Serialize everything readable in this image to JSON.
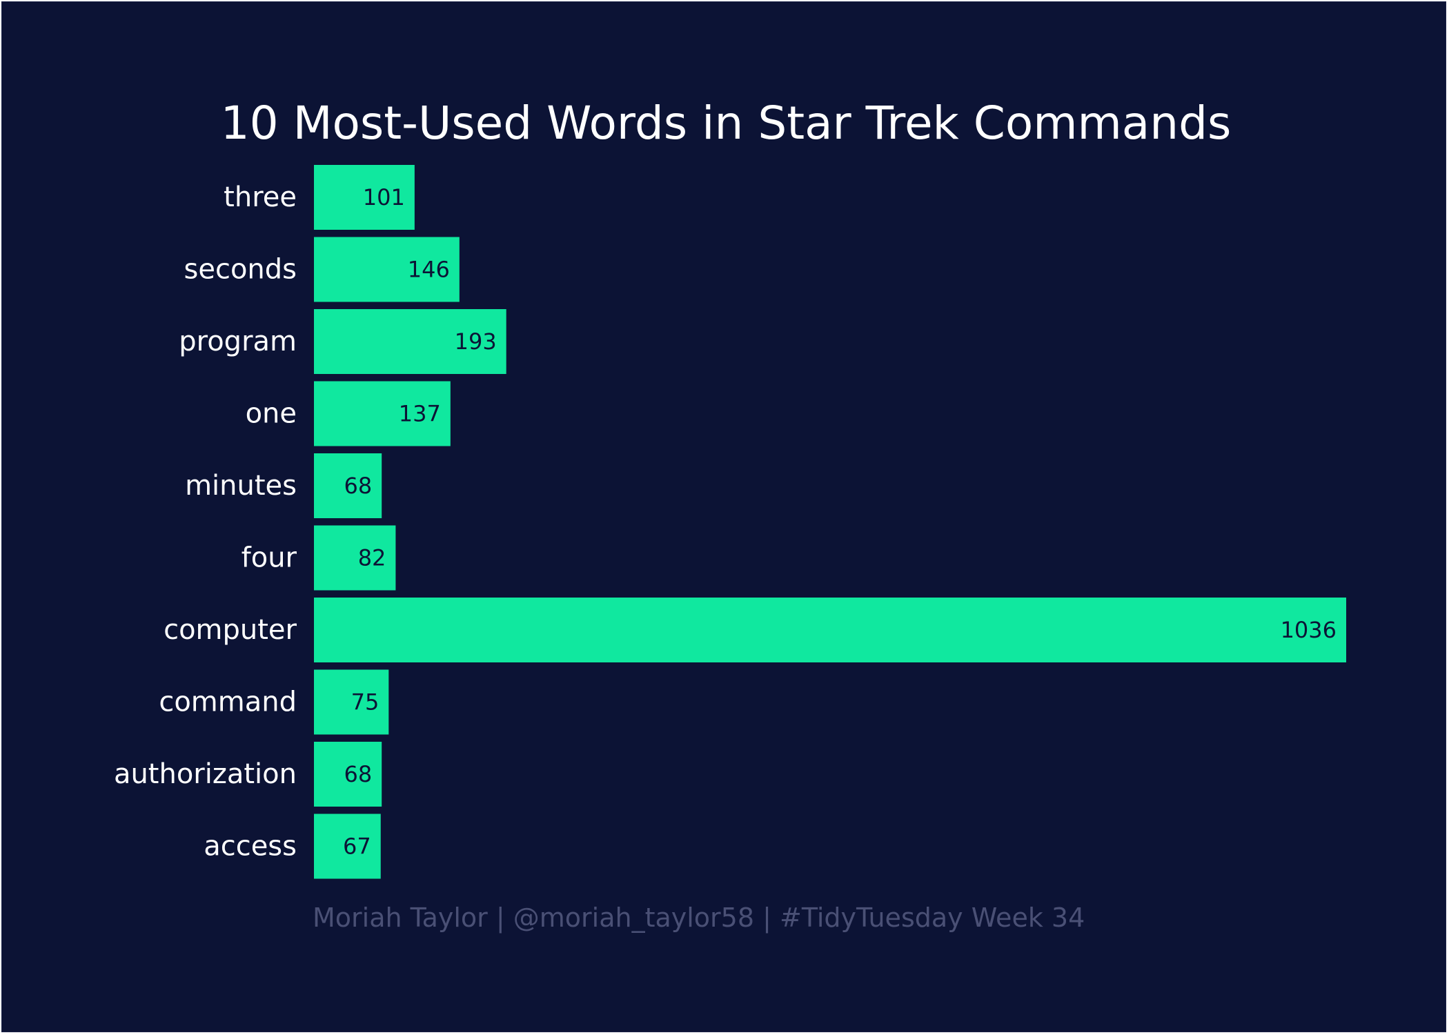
{
  "chart_data": {
    "type": "bar",
    "orientation": "horizontal",
    "title": "10 Most-Used Words in Star Trek Commands",
    "caption": "Moriah Taylor | @moriah_taylor58 | #TidyTuesday Week 34",
    "categories": [
      "three",
      "seconds",
      "program",
      "one",
      "minutes",
      "four",
      "computer",
      "command",
      "authorization",
      "access"
    ],
    "values": [
      101,
      146,
      193,
      137,
      68,
      82,
      1036,
      75,
      68,
      67
    ],
    "xlim": [
      0,
      1036
    ],
    "grid": false,
    "legend": "none",
    "value_labels": "inside-end"
  },
  "colors": {
    "background": "#0c1335",
    "bar": "#10e89f",
    "title": "#ffffff",
    "category_label": "#ffffff",
    "value_label": "#0c1335",
    "caption": "#4a5075"
  }
}
